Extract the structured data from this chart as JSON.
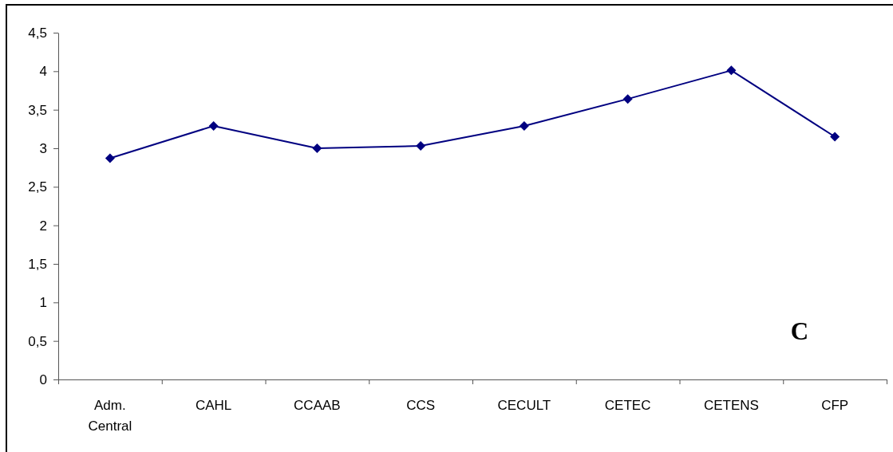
{
  "chart_data": {
    "type": "line",
    "categories": [
      "Adm. Central",
      "CAHL",
      "CCAAB",
      "CCS",
      "CECULT",
      "CETEC",
      "CETENS",
      "CFP"
    ],
    "values": [
      2.87,
      3.29,
      3.0,
      3.03,
      3.29,
      3.64,
      4.01,
      3.15
    ],
    "color": "#000080",
    "marker": "diamond",
    "line_style": "solid",
    "ylim": [
      0,
      4.5
    ],
    "yticks": [
      0,
      {
        "value": 0.5,
        "label": "0,5"
      },
      1,
      {
        "value": 1.5,
        "label": "1,5"
      },
      2,
      {
        "value": 2.5,
        "label": "2,5"
      },
      3,
      {
        "value": 3.5,
        "label": "3,5"
      },
      4,
      {
        "value": 4.5,
        "label": "4,5"
      }
    ],
    "annotations": [
      "C"
    ]
  }
}
